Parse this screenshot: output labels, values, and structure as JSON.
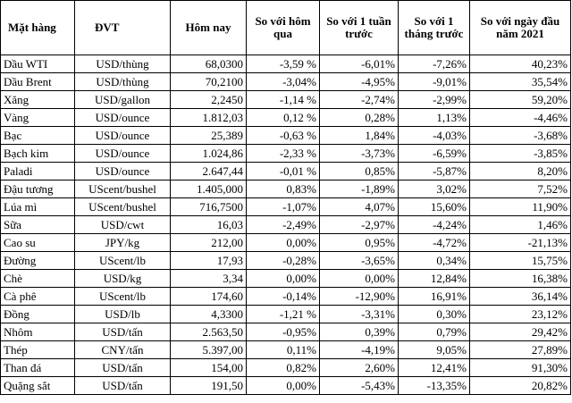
{
  "table": {
    "headers": [
      "Mặt hàng",
      "ĐVT",
      "Hôm nay",
      "So với hôm qua",
      "So với 1 tuần trước",
      "So với 1 tháng trước",
      "So với ngày đầu năm 2021"
    ],
    "rows": [
      [
        "Dầu WTI",
        "USD/thùng",
        "68,0300",
        "-3,59 %",
        "-6,01%",
        "-7,26%",
        "40,23%"
      ],
      [
        "Dầu Brent",
        "USD/thùng",
        "70,2100",
        "-3,04%",
        "-4,95%",
        "-9,01%",
        "35,54%"
      ],
      [
        "Xăng",
        "USD/gallon",
        "2,2450",
        "-1,14 %",
        "-2,74%",
        "-2,99%",
        "59,20%"
      ],
      [
        "Vàng",
        "USD/ounce",
        "1.812,03",
        "0,12 %",
        "0,28%",
        "1,13%",
        "-4,46%"
      ],
      [
        "Bạc",
        "USD/ounce",
        "25,389",
        "-0,63 %",
        "1,84%",
        "-4,03%",
        "-3,68%"
      ],
      [
        "Bạch kim",
        "USD/ounce",
        "1.024,86",
        "-2,33 %",
        "-3,73%",
        "-6,59%",
        "-3,85%"
      ],
      [
        "Paladi",
        "USD/ounce",
        "2.647,44",
        "-0,01 %",
        "0,85%",
        "-5,87%",
        "8,20%"
      ],
      [
        "Đậu tương",
        "UScent/bushel",
        "1.405,000",
        "0,83%",
        "-1,89%",
        "3,02%",
        "7,52%"
      ],
      [
        "Lúa mì",
        "UScent/bushel",
        "716,7500",
        "-1,07%",
        "4,07%",
        "15,60%",
        "11,90%"
      ],
      [
        "Sữa",
        "USD/cwt",
        "16,03",
        "-2,49%",
        "-2,97%",
        "-4,24%",
        "1,46%"
      ],
      [
        "Cao su",
        "JPY/kg",
        "212,00",
        "0,00%",
        "0,95%",
        "-4,72%",
        "-21,13%"
      ],
      [
        "Đường",
        "UScent/lb",
        "17,93",
        "-0,28%",
        "-3,65%",
        "0,34%",
        "15,75%"
      ],
      [
        "Chè",
        "USD/kg",
        "3,34",
        "0,00%",
        "0,00%",
        "12,84%",
        "16,38%"
      ],
      [
        "Cà phê",
        "UScent/lb",
        "174,60",
        "-0,14%",
        "-12,90%",
        "16,91%",
        "36,14%"
      ],
      [
        "Đồng",
        "USD/lb",
        "4,3300",
        "-1,21 %",
        "-3,31%",
        "0,30%",
        "23,12%"
      ],
      [
        "Nhôm",
        "USD/tấn",
        "2.563,50",
        "-0,95%",
        "0,39%",
        "0,79%",
        "29,42%"
      ],
      [
        "Thép",
        "CNY/tấn",
        "5.397,00",
        "0,11%",
        "-4,19%",
        "9,05%",
        "27,89%"
      ],
      [
        "Than đá",
        "USD/tấn",
        "154,00",
        "0,82%",
        "2,60%",
        "12,41%",
        "91,30%"
      ],
      [
        "Quặng sắt",
        "USD/tấn",
        "191,50",
        "0,00%",
        "-5,43%",
        "-13,35%",
        "20,82%"
      ]
    ]
  }
}
